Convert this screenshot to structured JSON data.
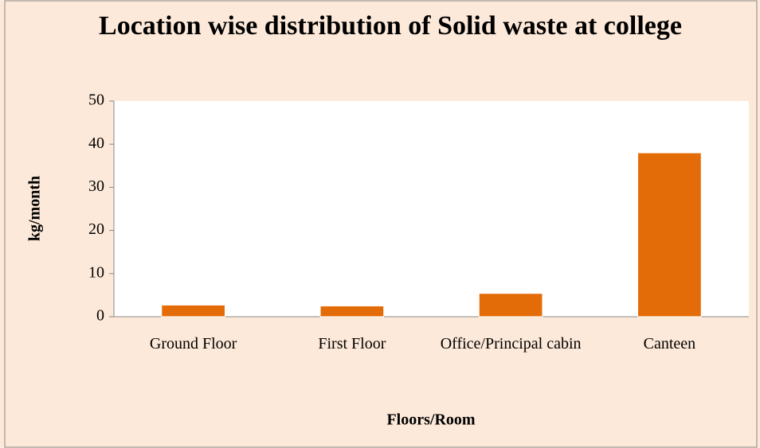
{
  "chart_data": {
    "type": "bar",
    "title": "Location wise distribution of Solid waste at college",
    "categories": [
      "Ground Floor",
      "First Floor",
      "Office/Principal cabin",
      "Canteen"
    ],
    "values": [
      2.7,
      2.5,
      5.4,
      38
    ],
    "color": "#e36c09",
    "ylim": [
      0,
      50
    ],
    "yticks": [
      0,
      10,
      20,
      30,
      40,
      50
    ],
    "ylabel": "kg/month",
    "xlabel": "Floors/Room",
    "grid": false
  }
}
